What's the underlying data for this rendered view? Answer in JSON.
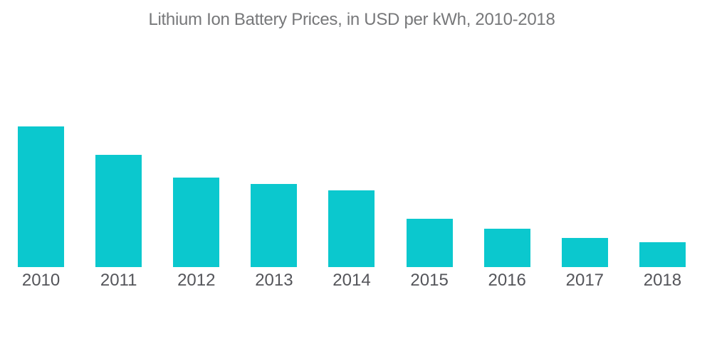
{
  "page": {
    "background": "#ffffff"
  },
  "chart": {
    "title": "Lithium Ion Battery Prices, in USD per kWh, 2010-2018"
  },
  "colors": {
    "bar": "#0bc8ce",
    "title_text": "#77787a",
    "axis_label_text": "#54555a",
    "background": "#ffffff"
  },
  "chart_data": {
    "type": "bar",
    "title": "Lithium Ion Battery Prices, in USD per kWh, 2010-2018",
    "categories": [
      "2010",
      "2011",
      "2012",
      "2013",
      "2014",
      "2015",
      "2016",
      "2017",
      "2018"
    ],
    "values": [
      1160,
      925,
      740,
      685,
      630,
      400,
      315,
      240,
      205
    ],
    "unit": "USD per kWh",
    "xlabel": "",
    "ylabel": "",
    "ylim": [
      0,
      1160
    ],
    "grid": false,
    "legend": false,
    "y_axis_shown": false,
    "x_axis_line_shown": false,
    "value_labels_shown": false,
    "bar_color": "#0bc8ce"
  }
}
